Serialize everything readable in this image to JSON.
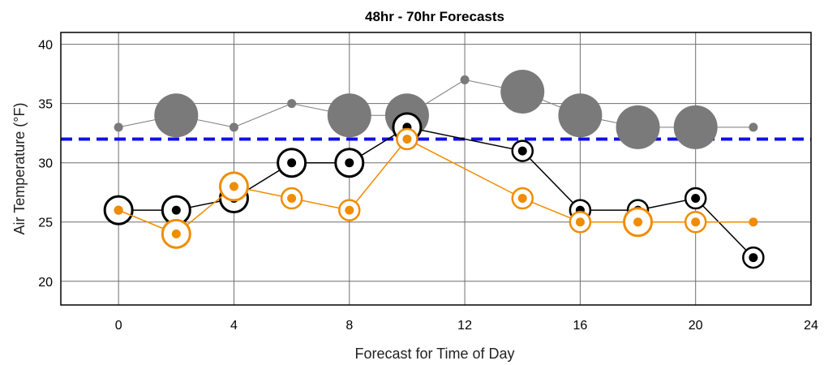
{
  "chart_data": {
    "type": "scatter",
    "title": "48hr - 70hr Forecasts",
    "xlabel": "Forecast for Time of Day",
    "ylabel": "Air Temperature (°F)",
    "xlim": [
      -2,
      24
    ],
    "ylim": [
      18,
      41
    ],
    "x_ticks": [
      0,
      4,
      8,
      12,
      16,
      20,
      24
    ],
    "y_ticks": [
      20,
      25,
      30,
      35,
      40
    ],
    "grid": true,
    "reference_line": {
      "y": 32,
      "style": "dashed",
      "color": "#1010e8"
    },
    "colors": {
      "gray": "#7a7a7a",
      "black": "#000000",
      "orange": "#f08c00",
      "blue": "#1010e8"
    },
    "series": [
      {
        "color": "gray",
        "points": [
          {
            "x": 0,
            "y": 33,
            "ring": 0
          },
          {
            "x": 2,
            "y": 34,
            "ring": 3
          },
          {
            "x": 4,
            "y": 33,
            "ring": 0
          },
          {
            "x": 6,
            "y": 35,
            "ring": 0
          },
          {
            "x": 8,
            "y": 34,
            "ring": 3
          },
          {
            "x": 10,
            "y": 34,
            "ring": 3
          },
          {
            "x": 12,
            "y": 37,
            "ring": 0
          },
          {
            "x": 14,
            "y": 36,
            "ring": 3
          },
          {
            "x": 16,
            "y": 34,
            "ring": 3
          },
          {
            "x": 18,
            "y": 33,
            "ring": 3
          },
          {
            "x": 20,
            "y": 33,
            "ring": 3
          },
          {
            "x": 22,
            "y": 33,
            "ring": 0
          }
        ]
      },
      {
        "color": "black",
        "points": [
          {
            "x": 0,
            "y": 26,
            "ring": 2
          },
          {
            "x": 2,
            "y": 26,
            "ring": 2
          },
          {
            "x": 4,
            "y": 27,
            "ring": 2
          },
          {
            "x": 6,
            "y": 30,
            "ring": 2
          },
          {
            "x": 8,
            "y": 30,
            "ring": 2
          },
          {
            "x": 10,
            "y": 33,
            "ring": 2
          },
          {
            "x": 14,
            "y": 31,
            "ring": 1
          },
          {
            "x": 16,
            "y": 26,
            "ring": 1
          },
          {
            "x": 18,
            "y": 26,
            "ring": 1
          },
          {
            "x": 20,
            "y": 27,
            "ring": 1
          },
          {
            "x": 22,
            "y": 22,
            "ring": 1
          }
        ]
      },
      {
        "color": "orange",
        "points": [
          {
            "x": 0,
            "y": 26,
            "ring": 0
          },
          {
            "x": 2,
            "y": 24,
            "ring": 2
          },
          {
            "x": 4,
            "y": 28,
            "ring": 2
          },
          {
            "x": 6,
            "y": 27,
            "ring": 1
          },
          {
            "x": 8,
            "y": 26,
            "ring": 1
          },
          {
            "x": 10,
            "y": 32,
            "ring": 1
          },
          {
            "x": 14,
            "y": 27,
            "ring": 1
          },
          {
            "x": 16,
            "y": 25,
            "ring": 1
          },
          {
            "x": 18,
            "y": 25,
            "ring": 2
          },
          {
            "x": 20,
            "y": 25,
            "ring": 1
          },
          {
            "x": 22,
            "y": 25,
            "ring": 0
          }
        ]
      }
    ]
  }
}
